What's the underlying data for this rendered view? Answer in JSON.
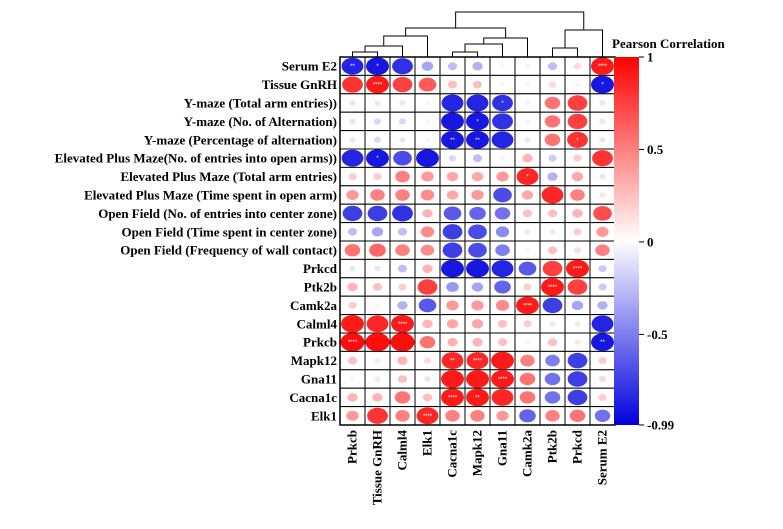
{
  "chart_data": {
    "type": "heatmap",
    "legend_title": "Pearson Correlation",
    "color_scale": {
      "min": -0.99,
      "max": 1,
      "min_color": "#0000dd",
      "mid_color": "#ffffff",
      "max_color": "#ff0000"
    },
    "colorbar_ticks": [
      "1",
      "0.5",
      "0",
      "-0.5",
      "-0.99"
    ],
    "colorbar_tick_values": [
      1,
      0.5,
      0,
      -0.5,
      -0.99
    ],
    "legend_placement": "right",
    "rows": [
      "Serum E2",
      "Tissue GnRH",
      "Y-maze (Total arm entries))",
      "Y-maze (No. of Alternation)",
      "Y-maze (Percentage of alternation)",
      "Elevated Plus Maze(No. of entries into open arms))",
      "Elevated Plus Maze (Total arm entries)",
      "Elevated Plus Maze (Time spent in open arm)",
      "Open Field (No. of entries into center zone)",
      "Open Field (Time spent in center zone)",
      "Open Field (Frequency of wall contact)",
      "Prkcd",
      "Ptk2b",
      "Camk2a",
      "Calml4",
      "Prkcb",
      "Mapk12",
      "Gna11",
      "Cacna1c",
      "Elk1"
    ],
    "columns": [
      "Prkcb",
      "Tissue GnRH",
      "Calml4",
      "Elk1",
      "Cacna1c",
      "Mapk12",
      "Gna11",
      "Camk2a",
      "Ptk2b",
      "Prkcd",
      "Serum E2"
    ],
    "values": [
      [
        -0.85,
        -0.9,
        -0.8,
        -0.35,
        -0.25,
        -0.3,
        0.05,
        -0.05,
        -0.25,
        0.15,
        0.9
      ],
      [
        0.8,
        0.9,
        0.75,
        0.65,
        0.25,
        0.25,
        0.05,
        0.05,
        0.15,
        -0.05,
        -0.9
      ],
      [
        -0.1,
        -0.1,
        -0.1,
        0.05,
        -0.85,
        -0.85,
        -0.8,
        -0.05,
        0.55,
        0.75,
        -0.1
      ],
      [
        -0.1,
        -0.15,
        -0.15,
        0.05,
        -0.9,
        -0.9,
        -0.8,
        -0.05,
        0.55,
        0.75,
        -0.1
      ],
      [
        -0.1,
        -0.15,
        -0.1,
        0.05,
        -0.9,
        -0.9,
        -0.85,
        -0.1,
        0.55,
        0.8,
        -0.1
      ],
      [
        -0.85,
        -0.9,
        -0.7,
        -0.9,
        -0.15,
        -0.25,
        -0.05,
        0.3,
        -0.2,
        0.2,
        0.8
      ],
      [
        0.2,
        0.2,
        0.5,
        0.4,
        0.35,
        0.35,
        0.4,
        0.85,
        -0.3,
        0.35,
        -0.1
      ],
      [
        0.4,
        0.5,
        0.5,
        0.45,
        0.35,
        0.4,
        -0.7,
        0.35,
        0.85,
        0.5,
        0.1
      ],
      [
        -0.75,
        -0.75,
        -0.8,
        0.3,
        -0.65,
        -0.6,
        -0.55,
        0.25,
        0.25,
        0.3,
        0.7
      ],
      [
        -0.25,
        -0.35,
        -0.25,
        0.45,
        -0.75,
        -0.7,
        -0.45,
        0.1,
        0.1,
        0.2,
        0.4
      ],
      [
        0.55,
        0.6,
        0.5,
        0.45,
        -0.75,
        -0.7,
        -0.5,
        0.05,
        0.25,
        0.15,
        0.5
      ],
      [
        -0.1,
        -0.1,
        -0.25,
        0.3,
        -0.9,
        -0.9,
        -0.85,
        -0.65,
        0.75,
        0.9,
        -0.2
      ],
      [
        0.3,
        0.25,
        0.2,
        0.75,
        -0.4,
        -0.35,
        -0.6,
        0.2,
        0.9,
        0.75,
        -0.2
      ],
      [
        0.2,
        0.05,
        -0.3,
        -0.65,
        0.4,
        0.4,
        0.45,
        0.9,
        -0.75,
        -0.35,
        -0.3
      ],
      [
        0.9,
        0.85,
        0.9,
        0.3,
        0.35,
        0.35,
        0.25,
        0.2,
        0.1,
        0.1,
        -0.85
      ],
      [
        0.95,
        0.95,
        0.95,
        0.55,
        0.3,
        0.3,
        0.25,
        0.05,
        0.25,
        0.1,
        -0.9
      ],
      [
        0.25,
        0.1,
        0.3,
        0.15,
        0.85,
        0.85,
        0.9,
        0.5,
        -0.5,
        -0.75,
        0.2
      ],
      [
        0.05,
        0.1,
        0.25,
        -0.1,
        0.9,
        0.9,
        0.9,
        0.55,
        -0.55,
        -0.75,
        0.15
      ],
      [
        0.3,
        0.3,
        0.55,
        0.25,
        0.9,
        0.9,
        0.85,
        0.55,
        -0.55,
        -0.75,
        0.2
      ],
      [
        0.4,
        0.8,
        0.5,
        0.85,
        0.5,
        0.5,
        0.4,
        -0.6,
        0.5,
        0.55,
        -0.55
      ]
    ],
    "annotations": [
      [
        0,
        0,
        "**"
      ],
      [
        0,
        1,
        "*"
      ],
      [
        0,
        10,
        "****"
      ],
      [
        1,
        1,
        "****"
      ],
      [
        1,
        10,
        "*"
      ],
      [
        2,
        6,
        "*"
      ],
      [
        3,
        5,
        "*"
      ],
      [
        4,
        4,
        "**"
      ],
      [
        4,
        5,
        "**"
      ],
      [
        4,
        9,
        "*"
      ],
      [
        5,
        1,
        "*"
      ],
      [
        6,
        7,
        "*"
      ],
      [
        11,
        9,
        "****"
      ],
      [
        12,
        8,
        "****"
      ],
      [
        13,
        7,
        "****"
      ],
      [
        14,
        2,
        "****"
      ],
      [
        15,
        0,
        "****"
      ],
      [
        15,
        10,
        "**"
      ],
      [
        16,
        4,
        "**"
      ],
      [
        16,
        5,
        "****"
      ],
      [
        17,
        6,
        "****"
      ],
      [
        18,
        4,
        "****"
      ],
      [
        18,
        5,
        "**"
      ],
      [
        19,
        3,
        "****"
      ]
    ],
    "dendrogram_leaf_order": [
      "Prkcb",
      "Tissue GnRH",
      "Calml4",
      "Elk1",
      "Cacna1c",
      "Mapk12",
      "Gna11",
      "Camk2a",
      "Ptk2b",
      "Prkcd",
      "Serum E2"
    ]
  }
}
